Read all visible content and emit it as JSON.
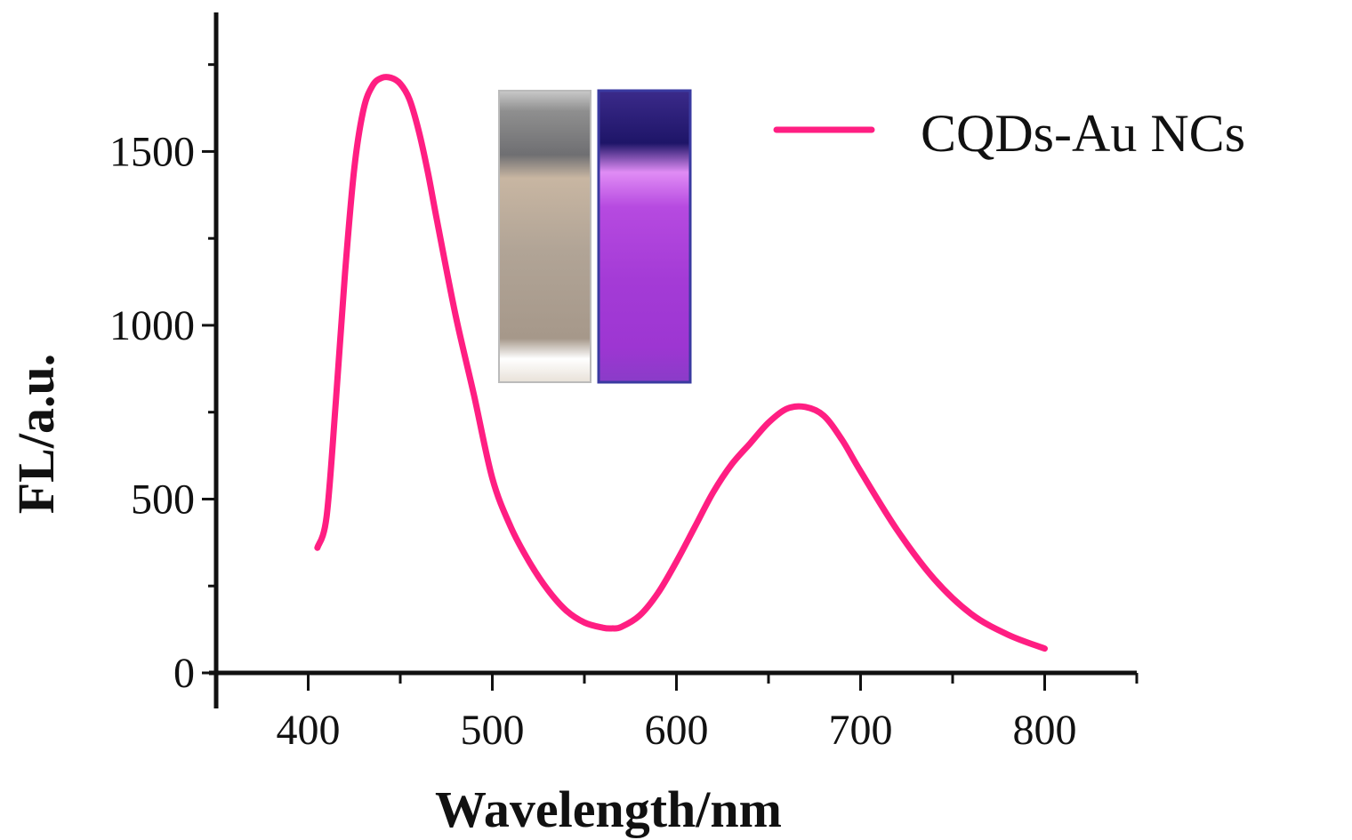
{
  "chart_data": {
    "type": "line",
    "xlabel": "Wavelength/nm",
    "ylabel": "FL/a.u.",
    "xlim": [
      350,
      850
    ],
    "ylim": [
      0,
      1900
    ],
    "x_ticks": [
      400,
      500,
      600,
      700,
      800
    ],
    "y_ticks": [
      0,
      500,
      1000,
      1500
    ],
    "grid": false,
    "legend_position": "top-right",
    "series": [
      {
        "name": "CQDs-Au NCs",
        "color": "#ff1e82",
        "x": [
          405,
          410,
          415,
          420,
          425,
          430,
          435,
          440,
          445,
          450,
          455,
          460,
          465,
          470,
          480,
          490,
          500,
          510,
          520,
          530,
          540,
          550,
          560,
          565,
          570,
          580,
          590,
          600,
          610,
          620,
          630,
          640,
          650,
          660,
          670,
          680,
          690,
          700,
          720,
          740,
          760,
          780,
          800
        ],
        "y": [
          360,
          450,
          780,
          1150,
          1450,
          1620,
          1690,
          1712,
          1712,
          1695,
          1650,
          1560,
          1440,
          1300,
          1030,
          800,
          560,
          420,
          320,
          240,
          180,
          145,
          130,
          128,
          132,
          165,
          230,
          320,
          420,
          520,
          600,
          660,
          720,
          760,
          765,
          740,
          670,
          580,
          410,
          270,
          170,
          110,
          70
        ]
      }
    ],
    "inset": {
      "description": "cuvette photos",
      "left_color": "#b8aca0",
      "right_color": "#a03ad6"
    }
  }
}
